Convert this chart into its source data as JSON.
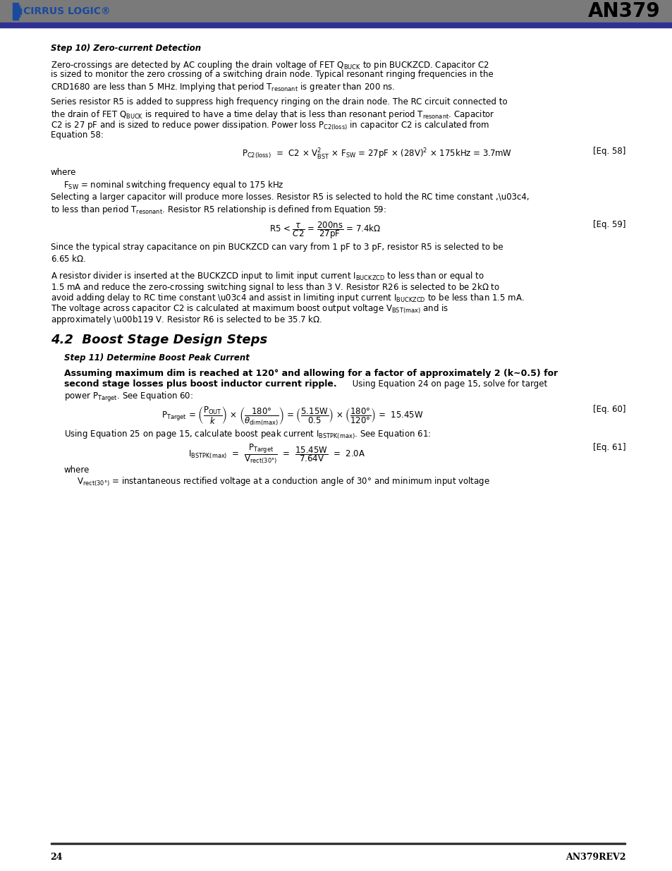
{
  "page_width": 9.54,
  "page_height": 12.35,
  "bg_color": "#ffffff",
  "an379_title": "AN379",
  "page_number": "24",
  "footer_right": "AN379REV2",
  "body_font_size": 8.5,
  "lm": 0.075,
  "lm_indent": 0.095,
  "rm": 0.93,
  "header_gray": "#7a7a7a",
  "header_blue": "#2e3192",
  "logo_blue": "#1a4a9e"
}
